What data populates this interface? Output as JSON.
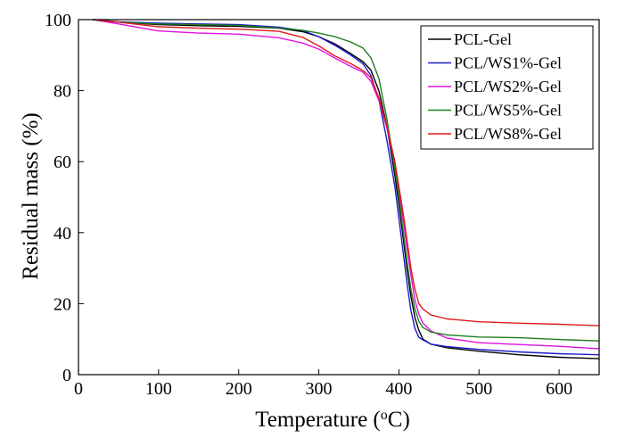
{
  "chart_data": {
    "type": "line",
    "xlabel": "Temperature (",
    "xlabel_sup": "o",
    "xlabel_unit": "C)",
    "ylabel": "Residual mass (%)",
    "xlim": [
      0,
      650
    ],
    "ylim": [
      0,
      100
    ],
    "xticks": [
      "0",
      "100",
      "200",
      "300",
      "400",
      "500",
      "600"
    ],
    "yticks": [
      "0",
      "20",
      "40",
      "60",
      "80",
      "100"
    ],
    "grid": false,
    "legend_position": "top-right",
    "series": [
      {
        "name": "PCL-Gel",
        "color": "#000000",
        "x": [
          18,
          50,
          100,
          150,
          200,
          250,
          280,
          300,
          320,
          340,
          355,
          365,
          375,
          385,
          395,
          400,
          405,
          410,
          415,
          420,
          425,
          430,
          440,
          460,
          500,
          550,
          600,
          650
        ],
        "y": [
          100,
          99.3,
          98.6,
          98.3,
          98.1,
          97.6,
          96.6,
          95.2,
          93.2,
          90.4,
          88.2,
          85.8,
          80,
          70,
          56,
          48,
          39,
          30,
          22,
          16,
          12.5,
          10,
          8.6,
          7.6,
          6.6,
          5.6,
          4.9,
          4.5
        ]
      },
      {
        "name": "PCL/WS1%-Gel",
        "color": "#1a1acc",
        "x": [
          18,
          50,
          100,
          150,
          200,
          250,
          280,
          300,
          320,
          340,
          355,
          365,
          375,
          385,
          395,
          400,
          405,
          410,
          415,
          420,
          425,
          430,
          440,
          460,
          500,
          550,
          600,
          650
        ],
        "y": [
          100,
          99.4,
          99,
          98.8,
          98.6,
          97.9,
          96.9,
          95.2,
          92.8,
          90,
          87.6,
          84.3,
          77.5,
          66,
          53,
          44,
          35,
          26,
          18,
          13,
          10.5,
          9.8,
          8.6,
          7.9,
          7.1,
          6.4,
          5.9,
          5.6
        ]
      },
      {
        "name": "PCL/WS2%-Gel",
        "color": "#e010e0",
        "x": [
          18,
          50,
          100,
          150,
          200,
          250,
          280,
          300,
          320,
          340,
          355,
          365,
          375,
          385,
          395,
          400,
          405,
          410,
          415,
          420,
          425,
          430,
          440,
          460,
          500,
          550,
          600,
          650
        ],
        "y": [
          100,
          98.8,
          96.8,
          96.2,
          95.9,
          94.9,
          93.4,
          91.7,
          89.2,
          86.8,
          85.2,
          82.7,
          77.2,
          69.5,
          59,
          52,
          44,
          36,
          28,
          21,
          17,
          14.5,
          12.3,
          10.3,
          9,
          8.5,
          8,
          7.3
        ]
      },
      {
        "name": "PCL/WS5%-Gel",
        "color": "#1e7d1e",
        "x": [
          18,
          50,
          100,
          150,
          200,
          250,
          280,
          300,
          320,
          340,
          355,
          365,
          375,
          385,
          395,
          400,
          405,
          410,
          415,
          420,
          425,
          430,
          440,
          460,
          500,
          550,
          600,
          650
        ],
        "y": [
          100,
          99.3,
          98.8,
          98.6,
          98.4,
          97.6,
          97,
          96.2,
          95.2,
          93.7,
          92,
          89.3,
          83.5,
          72,
          58,
          50,
          41,
          32,
          24,
          18.5,
          15,
          13.3,
          12,
          11.2,
          10.6,
          10.4,
          9.9,
          9.5
        ]
      },
      {
        "name": "PCL/WS8%-Gel",
        "color": "#e01a1a",
        "x": [
          18,
          50,
          100,
          150,
          200,
          250,
          280,
          300,
          320,
          340,
          355,
          365,
          375,
          385,
          395,
          400,
          405,
          410,
          415,
          420,
          425,
          430,
          440,
          460,
          500,
          550,
          600,
          650
        ],
        "y": [
          100,
          99.3,
          98,
          97.6,
          97.3,
          96.7,
          95,
          92.6,
          89.8,
          87.6,
          85.7,
          83.7,
          78,
          70,
          60,
          53,
          46,
          38,
          30,
          24,
          20,
          18.5,
          16.8,
          15.7,
          14.9,
          14.5,
          14.2,
          13.8
        ]
      }
    ]
  }
}
